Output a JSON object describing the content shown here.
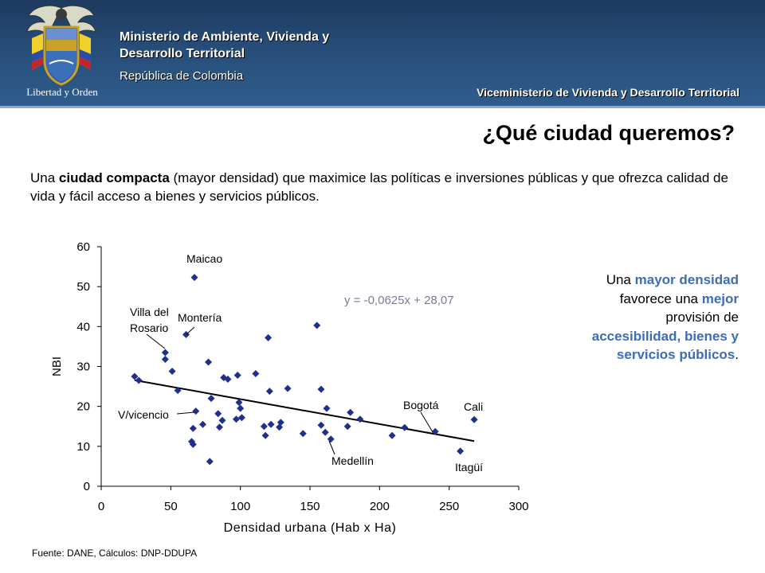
{
  "header": {
    "motto": "Libertad y Orden",
    "ministry_line1": "Ministerio de Ambiente, Vivienda y",
    "ministry_line2": "Desarrollo Territorial",
    "republic": "República de Colombia",
    "vice_ministry": "Viceministerio de Vivienda y Desarrollo Territorial"
  },
  "page": {
    "title": "¿Qué ciudad queremos?",
    "intro": {
      "p1": "Una ",
      "b1": "ciudad compacta",
      "p2": " (mayor densidad) que maximice las políticas e inversiones públicas y que ofrezca calidad de vida y fácil acceso a bienes y servicios públicos."
    },
    "side_note": {
      "t1": "Una ",
      "h1": "mayor densidad",
      "t2": " favorece una ",
      "h2": "mejor",
      "t3": " provisión de ",
      "h3": "accesibilidad, bienes y servicios públicos",
      "t4": "."
    },
    "source": "Fuente: DANE, Cálculos: DNP-DDUPA"
  },
  "colors": {
    "header": "#274d78",
    "point": "#1f2f8c",
    "trendline": "#000000",
    "highlight": "#3e6cb5",
    "equation": "#7a7a9a"
  },
  "chart_data": {
    "type": "scatter",
    "xlabel": "Densidad urbana (Hab x Ha)",
    "ylabel": "NBI",
    "xlim": [
      0,
      300
    ],
    "ylim": [
      0,
      60
    ],
    "xticks": [
      0,
      50,
      100,
      150,
      200,
      250,
      300
    ],
    "yticks": [
      0,
      10,
      20,
      30,
      40,
      50,
      60
    ],
    "grid": false,
    "equation": "y = -0,0625x + 28,07",
    "trendline": {
      "slope": -0.0625,
      "intercept": 28.07,
      "x_range": [
        24,
        268
      ]
    },
    "points": [
      [
        24,
        27.5
      ],
      [
        27,
        26.5
      ],
      [
        46,
        33.5
      ],
      [
        46,
        31.8
      ],
      [
        51,
        28.8
      ],
      [
        55,
        24.0
      ],
      [
        61,
        38.0
      ],
      [
        65,
        11.2
      ],
      [
        66,
        10.5
      ],
      [
        66,
        14.5
      ],
      [
        67,
        52.3
      ],
      [
        68,
        18.8
      ],
      [
        73,
        15.5
      ],
      [
        77,
        31.1
      ],
      [
        78,
        6.2
      ],
      [
        79,
        22.0
      ],
      [
        84,
        18.2
      ],
      [
        85,
        14.8
      ],
      [
        87,
        16.5
      ],
      [
        88,
        27.2
      ],
      [
        91,
        26.8
      ],
      [
        97,
        16.8
      ],
      [
        98,
        27.8
      ],
      [
        99,
        21.0
      ],
      [
        100,
        19.5
      ],
      [
        101,
        17.2
      ],
      [
        111,
        28.2
      ],
      [
        117,
        15.0
      ],
      [
        118,
        12.7
      ],
      [
        120,
        37.2
      ],
      [
        121,
        23.8
      ],
      [
        122,
        15.5
      ],
      [
        128,
        14.8
      ],
      [
        129,
        16.0
      ],
      [
        134,
        24.5
      ],
      [
        145,
        13.2
      ],
      [
        155,
        40.3
      ],
      [
        158,
        24.3
      ],
      [
        158,
        15.3
      ],
      [
        161,
        13.5
      ],
      [
        162,
        19.5
      ],
      [
        165,
        11.8
      ],
      [
        177,
        15.0
      ],
      [
        179,
        18.5
      ],
      [
        186,
        16.8
      ],
      [
        209,
        12.7
      ],
      [
        218,
        14.7
      ],
      [
        240,
        13.7
      ],
      [
        258,
        8.8
      ],
      [
        268,
        16.7
      ]
    ],
    "annotations": [
      {
        "label": "Maicao",
        "x": 67,
        "y": 52.3
      },
      {
        "label": "Villa del",
        "label2": "Rosario",
        "x": 46,
        "y": 33.5
      },
      {
        "label": "Montería",
        "x": 61,
        "y": 38.0
      },
      {
        "label": "V/vicencio",
        "x": 68,
        "y": 18.8
      },
      {
        "label": "Bogotá",
        "x": 240,
        "y": 13.7
      },
      {
        "label": "Cali",
        "x": 268,
        "y": 16.7
      },
      {
        "label": "Medellín",
        "x": 165,
        "y": 11.8
      },
      {
        "label": "Itagüí",
        "x": 258,
        "y": 8.8
      }
    ]
  }
}
